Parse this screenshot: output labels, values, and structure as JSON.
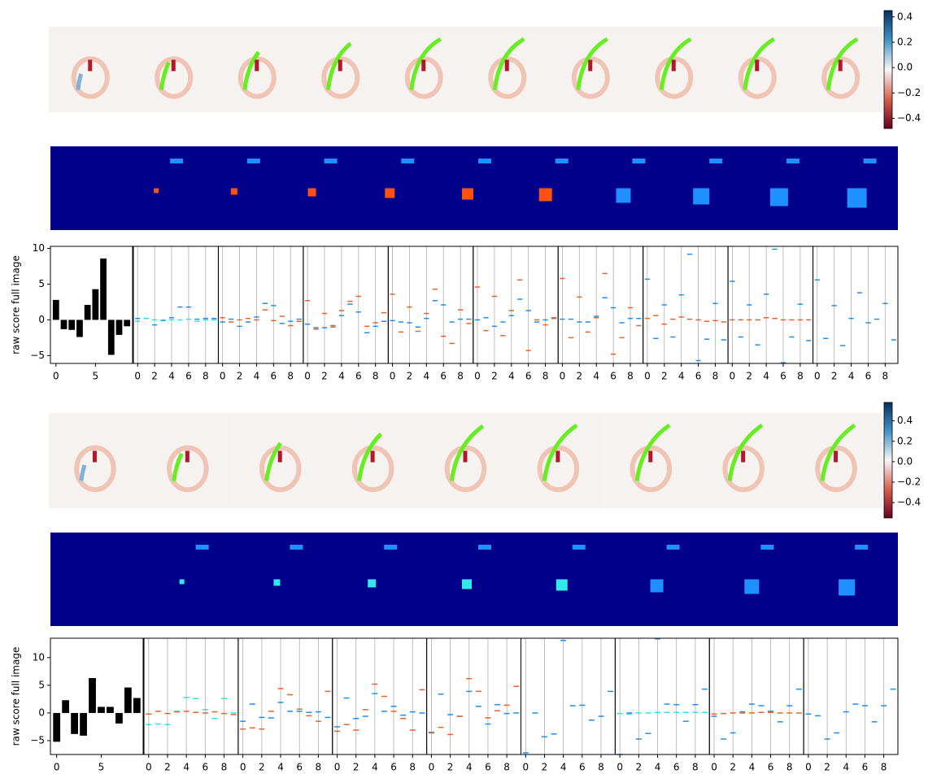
{
  "chart_data": [
    {
      "type": "colorbar",
      "ylim": [
        -0.48,
        0.45
      ],
      "yticks": [
        0.4,
        0.2,
        {
          "value": 0,
          "label": "0.0"
        },
        {
          "value": -0.2,
          "label": "−0.2"
        },
        {
          "value": -0.4,
          "label": "−0.4"
        }
      ]
    },
    {
      "type": "bar",
      "ylabel": "raw score full image",
      "color": "#000000",
      "values": [
        2.8,
        -1.3,
        -1.4,
        -2.4,
        2.1,
        4.3,
        8.6,
        -4.9,
        -2.1,
        -0.9
      ],
      "xlim": [
        -0.7,
        9.7
      ],
      "xticks": [
        0,
        5
      ],
      "ylim": [
        -6.1,
        10.3
      ],
      "yticks": [
        10,
        5,
        0,
        {
          "value": -5,
          "label": "−5"
        }
      ]
    },
    {
      "type": "dash",
      "xlim": [
        -0.5,
        9.5
      ],
      "xticks": [
        0,
        2,
        4,
        6,
        8
      ],
      "ylim": [
        -6.1,
        10.3
      ],
      "grid": true,
      "panels": [
        {
          "series": [
            {
              "color": "#1f8fe8",
              "values": [
                0.2,
                0.2,
                -0.7,
                -0.1,
                0.3,
                1.8,
                1.8,
                0.1,
                0.2,
                0.2
              ]
            },
            {
              "color": "#33e0e0",
              "values": [
                -0.2,
                0.2,
                0,
                0,
                0,
                0,
                0.1,
                -0.2,
                0,
                0
              ]
            }
          ]
        },
        {
          "series": [
            {
              "color": "#1f8fe8",
              "values": [
                -0.3,
                0.1,
                -0.9,
                -0.3,
                0.4,
                2.3,
                2.0,
                -0.5,
                -0.2,
                0.1
              ]
            },
            {
              "color": "#e8622a",
              "values": [
                0.3,
                -0.3,
                0,
                0.2,
                0,
                1.4,
                -0.1,
                0.5,
                -0.8,
                -0.2
              ]
            }
          ]
        },
        {
          "series": [
            {
              "color": "#1f8fe8",
              "values": [
                -0.6,
                -1.1,
                -1.1,
                -0.8,
                0.6,
                2.2,
                1.1,
                -1.8,
                -0.9,
                -0.2
              ]
            },
            {
              "color": "#e8622a",
              "values": [
                2.7,
                -1.3,
                0.9,
                -1.0,
                1.3,
                2.6,
                3.3,
                -0.9,
                -0.4,
                1.0
              ]
            }
          ]
        },
        {
          "series": [
            {
              "color": "#1f8fe8",
              "values": [
                -0.1,
                -0.3,
                -0.4,
                -1.0,
                0.2,
                2.7,
                2.1,
                -0.3,
                0.1,
                0.1
              ]
            },
            {
              "color": "#e8622a",
              "values": [
                3.6,
                -1.7,
                1.8,
                -1.6,
                0.9,
                4.3,
                -2.3,
                -3.3,
                1.4,
                -0.5
              ]
            }
          ]
        },
        {
          "series": [
            {
              "color": "#1f8fe8",
              "values": [
                0.0,
                0.3,
                -0.9,
                -0.3,
                0.6,
                2.9,
                1.3,
                -0.3,
                0.0,
                0.2
              ]
            },
            {
              "color": "#e8622a",
              "values": [
                4.6,
                -1.5,
                3.3,
                -2.2,
                1.3,
                5.6,
                -4.3,
                0,
                -0.7,
                0.3
              ]
            }
          ]
        },
        {
          "series": [
            {
              "color": "#1f8fe8",
              "values": [
                0.1,
                0.1,
                -0.3,
                -0.3,
                0.5,
                3.1,
                1.7,
                -0.4,
                0.2,
                0.2
              ]
            },
            {
              "color": "#e8622a",
              "values": [
                5.8,
                -2.5,
                3.2,
                -1.7,
                0.3,
                6.5,
                -4.8,
                -2.5,
                1.7,
                -0.8
              ]
            }
          ]
        },
        {
          "series": [
            {
              "color": "#1f8fe8",
              "values": [
                5.7,
                -2.6,
                2.1,
                -2.4,
                3.5,
                9.2,
                -5.7,
                -2.7,
                2.3,
                -2.8
              ]
            },
            {
              "color": "#e8622a",
              "values": [
                0.2,
                0.6,
                -0.6,
                0.1,
                0.4,
                0.1,
                0.0,
                -0.2,
                -0.1,
                -0.3
              ]
            }
          ]
        },
        {
          "series": [
            {
              "color": "#1f8fe8",
              "values": [
                5.4,
                -2.4,
                2.1,
                -3.5,
                3.6,
                9.9,
                -6.0,
                -2.4,
                2.2,
                -2.9
              ]
            },
            {
              "color": "#e8622a",
              "values": [
                0,
                0,
                0,
                0,
                0.3,
                0.2,
                0,
                0,
                0,
                0
              ]
            }
          ]
        },
        {
          "series": [
            {
              "color": "#1f8fe8",
              "values": [
                5.6,
                -2.6,
                2.0,
                -3.6,
                0.2,
                3.8,
                -0.4,
                0.1,
                2.3,
                -2.8
              ]
            }
          ]
        }
      ]
    },
    {
      "type": "colorbar",
      "ylim": [
        -0.55,
        0.58
      ],
      "yticks": [
        0.4,
        0.2,
        {
          "value": 0,
          "label": "0.0"
        },
        {
          "value": -0.2,
          "label": "−0.2"
        },
        {
          "value": -0.4,
          "label": "−0.4"
        }
      ]
    },
    {
      "type": "bar",
      "ylabel": "raw score full image",
      "color": "#000000",
      "values": [
        -5.2,
        2.3,
        -3.8,
        -4.1,
        6.3,
        1.1,
        1.1,
        -1.9,
        4.6,
        2.7
      ],
      "xlim": [
        -0.7,
        9.7
      ],
      "xticks": [
        0,
        5
      ],
      "ylim": [
        -7.5,
        13.5
      ],
      "yticks": [
        10,
        5,
        0,
        {
          "value": -5,
          "label": "−5"
        }
      ]
    },
    {
      "type": "dash",
      "xlim": [
        -0.5,
        9.5
      ],
      "xticks": [
        0,
        2,
        4,
        6,
        8
      ],
      "ylim": [
        -7.5,
        13.5
      ],
      "grid": true,
      "panels": [
        {
          "series": [
            {
              "color": "#33e0e0",
              "values": [
                -2.1,
                -2.0,
                -2.1,
                0.3,
                2.8,
                2.6,
                0.6,
                -1.0,
                2.6,
                0.0
              ]
            },
            {
              "color": "#e8622a",
              "values": [
                -0.2,
                0.3,
                -0.1,
                0.2,
                0.3,
                0.1,
                0.0,
                0.2,
                -0.1,
                -0.3
              ]
            }
          ]
        },
        {
          "series": [
            {
              "color": "#1f8fe8",
              "values": [
                -1.5,
                1.6,
                -0.8,
                -0.9,
                1.9,
                0.3,
                0.3,
                0.1,
                0.2,
                -0.8
              ]
            },
            {
              "color": "#e8622a",
              "values": [
                -2.9,
                -2.7,
                -2.9,
                0.3,
                4.4,
                3.3,
                0.7,
                -0.5,
                -1.5,
                3.9
              ]
            }
          ]
        },
        {
          "series": [
            {
              "color": "#1f8fe8",
              "values": [
                -2.5,
                2.7,
                -1.0,
                -0.6,
                3.5,
                0.3,
                1.2,
                -0.4,
                0.2,
                0.0
              ]
            },
            {
              "color": "#e8622a",
              "values": [
                -3.3,
                -2.1,
                -3.1,
                0.6,
                5.2,
                3.0,
                0.3,
                -1.0,
                -3.1,
                4.2
              ]
            }
          ]
        },
        {
          "series": [
            {
              "color": "#1f8fe8",
              "values": [
                -3.5,
                3.4,
                -0.3,
                -0.6,
                3.9,
                1.2,
                -2.0,
                1.5,
                -0.1,
                0.0
              ]
            },
            {
              "color": "#e8622a",
              "values": [
                -3.6,
                -2.6,
                -3.9,
                -0.6,
                6.2,
                3.9,
                -0.9,
                0.4,
                1.4,
                4.8
              ]
            }
          ]
        },
        {
          "series": [
            {
              "color": "#1f8fe8",
              "values": [
                -7.2,
                0.0,
                -4.3,
                -3.8,
                13.1,
                1.3,
                1.4,
                -1.3,
                -0.6,
                3.9
              ]
            }
          ]
        },
        {
          "series": [
            {
              "color": "#1f8fe8",
              "values": [
                -7.5,
                0.0,
                -4.7,
                -3.7,
                13.4,
                1.6,
                1.5,
                -1.5,
                1.5,
                4.3
              ]
            },
            {
              "color": "#33e0e0",
              "values": [
                -0.1,
                -0.2,
                0.0,
                0.0,
                0.1,
                0.1,
                0.1,
                0.1,
                0.1,
                0.1
              ]
            }
          ]
        },
        {
          "series": [
            {
              "color": "#1f8fe8",
              "values": [
                -0.6,
                -4.7,
                -3.6,
                0.2,
                1.6,
                1.3,
                0.3,
                -1.6,
                1.3,
                4.3
              ]
            },
            {
              "color": "#e8622a",
              "values": [
                -0.2,
                -0.1,
                0,
                0,
                0,
                0.1,
                0.1,
                0,
                0,
                0
              ]
            }
          ]
        },
        {
          "series": [
            {
              "color": "#1f8fe8",
              "values": [
                -0.2,
                -0.5,
                -4.7,
                -3.6,
                0.2,
                1.6,
                1.3,
                -1.6,
                1.3,
                4.3
              ]
            }
          ]
        }
      ]
    }
  ]
}
